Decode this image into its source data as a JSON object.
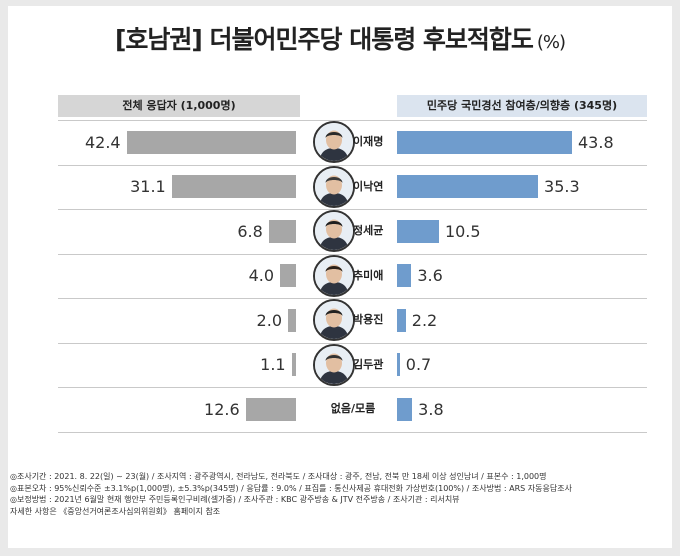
{
  "title": "[호남권] 더불어민주당 대통령 후보적합도",
  "title_unit": "(%)",
  "chart_data": {
    "type": "bar",
    "orientation": "horizontal-butterfly",
    "categories": [
      "이재명",
      "이낙연",
      "정세균",
      "추미애",
      "박용진",
      "김두관",
      "없음/모름"
    ],
    "series": [
      {
        "name": "전체 응답자 (1,000명)",
        "values": [
          42.4,
          31.1,
          6.8,
          4.0,
          2.0,
          1.1,
          12.6
        ],
        "labels": [
          "42.4",
          "31.1",
          "6.8",
          "4.0",
          "2.0",
          "1.1",
          "12.6"
        ],
        "color": "#a7a7a7"
      },
      {
        "name": "민주당 국민경선 참여층/의향층 (345명)",
        "values": [
          43.8,
          35.3,
          10.5,
          3.6,
          2.2,
          0.7,
          3.8
        ],
        "labels": [
          "43.8",
          "35.3",
          "10.5",
          "3.6",
          "2.2",
          "0.7",
          "3.8"
        ],
        "color": "#6f9ccd"
      }
    ],
    "candidates_with_photo": [
      "이재명",
      "이낙연",
      "정세균",
      "추미애",
      "박용진",
      "김두관"
    ],
    "scale_max": 45
  },
  "footer": [
    "◎조사기간 : 2021. 8. 22(일) ~ 23(월) / 조사지역 : 광주광역시, 전라남도, 전라북도 / 조사대상 : 광주, 전남, 전북 만 18세 이상 성인남녀 / 표본수 : 1,000명",
    "◎표본오차 : 95%신뢰수준 ±3.1%p(1,000명), ±5.3%p(345명) / 응답률 : 9.0% / 표집틀 : 통신사제공 휴대전화 가상번호(100%) / 조사방법 : ARS 자동응답조사",
    "◎보정방법 : 2021년 6월말 현재 행안부 주민등록인구비례(셀가중) / 조사주관 : KBC 광주방송 & JTV 전주방송 / 조사기관 : 리서치뷰",
    "자세한 사항은 《중앙선거여론조사심의위원회》 홈페이지 참조"
  ]
}
